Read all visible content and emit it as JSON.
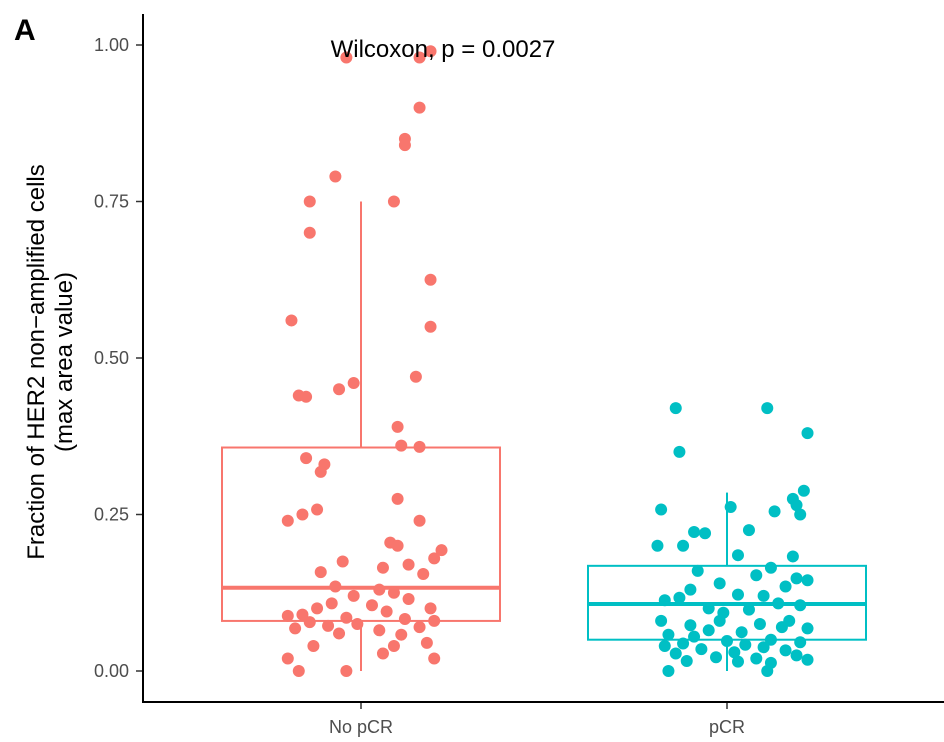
{
  "panel_label": "A",
  "chart_data": {
    "type": "box",
    "title": "",
    "xlabel": "",
    "ylabel_line1": "Fraction of HER2 non−amplified cells",
    "ylabel_line2": "(max area value)",
    "annotation": "Wilcoxon, p = 0.0027",
    "ylim": [
      0,
      1.0
    ],
    "y_ticks": [
      0.0,
      0.25,
      0.5,
      0.75,
      1.0
    ],
    "y_tick_labels": [
      "0.00",
      "0.25",
      "0.50",
      "0.75",
      "1.00"
    ],
    "categories": [
      "No pCR",
      "pCR"
    ],
    "grid": false,
    "legend": "none",
    "colors": {
      "No pCR": "#F8766D",
      "pCR": "#00BFC4"
    },
    "series": [
      {
        "category": "No pCR",
        "box": {
          "q1": 0.08,
          "median": 0.133,
          "q3": 0.357,
          "whisker_low": 0.0,
          "whisker_high": 0.75
        },
        "points": [
          [
            -0.04,
            0.98
          ],
          [
            0.19,
            0.99
          ],
          [
            0.16,
            0.98
          ],
          [
            0.16,
            0.9
          ],
          [
            0.12,
            0.85
          ],
          [
            0.12,
            0.84
          ],
          [
            -0.07,
            0.79
          ],
          [
            -0.14,
            0.75
          ],
          [
            0.09,
            0.75
          ],
          [
            -0.14,
            0.7
          ],
          [
            0.19,
            0.625
          ],
          [
            -0.19,
            0.56
          ],
          [
            0.19,
            0.55
          ],
          [
            0.15,
            0.47
          ],
          [
            -0.02,
            0.46
          ],
          [
            -0.06,
            0.45
          ],
          [
            -0.17,
            0.44
          ],
          [
            -0.15,
            0.438
          ],
          [
            0.1,
            0.39
          ],
          [
            0.11,
            0.36
          ],
          [
            0.16,
            0.358
          ],
          [
            -0.15,
            0.34
          ],
          [
            -0.1,
            0.33
          ],
          [
            -0.11,
            0.318
          ],
          [
            0.1,
            0.275
          ],
          [
            -0.12,
            0.258
          ],
          [
            -0.16,
            0.25
          ],
          [
            -0.2,
            0.24
          ],
          [
            0.16,
            0.24
          ],
          [
            0.08,
            0.205
          ],
          [
            0.1,
            0.2
          ],
          [
            0.22,
            0.193
          ],
          [
            0.2,
            0.18
          ],
          [
            -0.05,
            0.175
          ],
          [
            0.13,
            0.17
          ],
          [
            0.06,
            0.165
          ],
          [
            -0.11,
            0.158
          ],
          [
            0.17,
            0.155
          ],
          [
            -0.07,
            0.135
          ],
          [
            0.05,
            0.13
          ],
          [
            0.09,
            0.125
          ],
          [
            -0.02,
            0.12
          ],
          [
            0.13,
            0.115
          ],
          [
            -0.08,
            0.108
          ],
          [
            0.03,
            0.105
          ],
          [
            -0.12,
            0.1
          ],
          [
            0.19,
            0.1
          ],
          [
            0.07,
            0.095
          ],
          [
            -0.16,
            0.09
          ],
          [
            -0.2,
            0.088
          ],
          [
            -0.04,
            0.085
          ],
          [
            0.12,
            0.083
          ],
          [
            0.2,
            0.08
          ],
          [
            -0.14,
            0.078
          ],
          [
            -0.01,
            0.075
          ],
          [
            -0.09,
            0.072
          ],
          [
            0.16,
            0.07
          ],
          [
            -0.18,
            0.068
          ],
          [
            0.05,
            0.065
          ],
          [
            -0.06,
            0.06
          ],
          [
            0.11,
            0.058
          ],
          [
            0.18,
            0.045
          ],
          [
            -0.13,
            0.04
          ],
          [
            0.09,
            0.04
          ],
          [
            0.06,
            0.028
          ],
          [
            -0.2,
            0.02
          ],
          [
            0.2,
            0.02
          ],
          [
            -0.17,
            0.0
          ],
          [
            -0.04,
            0.0
          ]
        ]
      },
      {
        "category": "pCR",
        "box": {
          "q1": 0.05,
          "median": 0.107,
          "q3": 0.168,
          "whisker_low": 0.0,
          "whisker_high": 0.285
        },
        "points": [
          [
            -0.14,
            0.42
          ],
          [
            0.11,
            0.42
          ],
          [
            0.22,
            0.38
          ],
          [
            -0.13,
            0.35
          ],
          [
            0.21,
            0.288
          ],
          [
            0.18,
            0.275
          ],
          [
            0.19,
            0.265
          ],
          [
            0.01,
            0.262
          ],
          [
            -0.18,
            0.258
          ],
          [
            0.13,
            0.255
          ],
          [
            0.2,
            0.25
          ],
          [
            -0.09,
            0.222
          ],
          [
            -0.06,
            0.22
          ],
          [
            0.06,
            0.225
          ],
          [
            -0.12,
            0.2
          ],
          [
            -0.19,
            0.2
          ],
          [
            0.18,
            0.183
          ],
          [
            0.03,
            0.185
          ],
          [
            0.12,
            0.165
          ],
          [
            -0.08,
            0.16
          ],
          [
            0.08,
            0.153
          ],
          [
            0.19,
            0.148
          ],
          [
            0.22,
            0.145
          ],
          [
            -0.02,
            0.14
          ],
          [
            0.16,
            0.135
          ],
          [
            -0.1,
            0.13
          ],
          [
            0.03,
            0.122
          ],
          [
            0.1,
            0.12
          ],
          [
            -0.13,
            0.117
          ],
          [
            -0.17,
            0.113
          ],
          [
            0.14,
            0.108
          ],
          [
            0.2,
            0.105
          ],
          [
            -0.05,
            0.1
          ],
          [
            0.06,
            0.098
          ],
          [
            -0.01,
            0.093
          ],
          [
            0.17,
            0.08
          ],
          [
            -0.18,
            0.08
          ],
          [
            -0.02,
            0.08
          ],
          [
            0.09,
            0.075
          ],
          [
            -0.1,
            0.073
          ],
          [
            0.15,
            0.07
          ],
          [
            0.22,
            0.068
          ],
          [
            -0.05,
            0.065
          ],
          [
            0.04,
            0.062
          ],
          [
            -0.16,
            0.058
          ],
          [
            -0.09,
            0.055
          ],
          [
            0.12,
            0.05
          ],
          [
            0.0,
            0.048
          ],
          [
            0.2,
            0.046
          ],
          [
            -0.12,
            0.044
          ],
          [
            0.05,
            0.042
          ],
          [
            -0.17,
            0.04
          ],
          [
            0.1,
            0.038
          ],
          [
            -0.07,
            0.035
          ],
          [
            0.16,
            0.033
          ],
          [
            0.02,
            0.03
          ],
          [
            -0.14,
            0.028
          ],
          [
            0.19,
            0.025
          ],
          [
            -0.03,
            0.022
          ],
          [
            0.08,
            0.02
          ],
          [
            0.22,
            0.018
          ],
          [
            -0.11,
            0.016
          ],
          [
            0.03,
            0.015
          ],
          [
            0.12,
            0.013
          ],
          [
            -0.16,
            0.0
          ],
          [
            0.11,
            0.0
          ]
        ]
      }
    ]
  }
}
